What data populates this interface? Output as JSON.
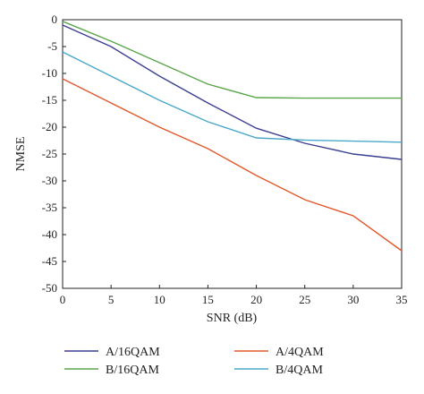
{
  "chart_data": {
    "type": "line",
    "xlabel": "SNR (dB)",
    "ylabel": "NMSE",
    "xlim": [
      0,
      35
    ],
    "ylim": [
      -50,
      0
    ],
    "xticks": [
      "0",
      "5",
      "10",
      "15",
      "20",
      "25",
      "30",
      "35"
    ],
    "yticks": [
      "0",
      "-5",
      "-10",
      "-15",
      "-20",
      "-25",
      "-30",
      "-35",
      "-40",
      "-45",
      "-50"
    ],
    "grid": false,
    "legend_position": "bottom",
    "series": [
      {
        "name": "A/16QAM",
        "color": "#3b3f8f",
        "x": [
          0,
          5,
          10,
          15,
          20,
          25,
          30,
          35
        ],
        "y": [
          -1,
          -5,
          -10.5,
          -15.5,
          -20.2,
          -23,
          -25,
          -26
        ]
      },
      {
        "name": "A/4QAM",
        "color": "#e0582a",
        "x": [
          0,
          5,
          10,
          15,
          20,
          25,
          30,
          35
        ],
        "y": [
          -11,
          -15.5,
          -20,
          -24,
          -29,
          -33.5,
          -36.5,
          -43
        ]
      },
      {
        "name": "B/16QAM",
        "color": "#5aa64a",
        "x": [
          0,
          5,
          10,
          15,
          20,
          25,
          30,
          35
        ],
        "y": [
          -0.3,
          -4,
          -8,
          -12,
          -14.5,
          -14.6,
          -14.6,
          -14.6
        ]
      },
      {
        "name": "B/4QAM",
        "color": "#4aa8c8",
        "x": [
          0,
          5,
          10,
          15,
          20,
          25,
          30,
          35
        ],
        "y": [
          -6,
          -10.5,
          -15,
          -19,
          -22,
          -22.4,
          -22.6,
          -22.8
        ]
      }
    ]
  }
}
